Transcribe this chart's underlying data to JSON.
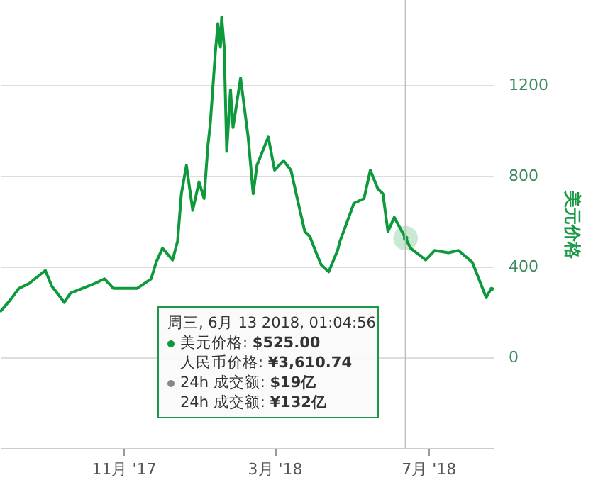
{
  "chart_data": {
    "type": "line",
    "ylabel": "美元价格",
    "x": [
      "2017-07-26",
      "2017-08-03",
      "2017-08-10",
      "2017-08-18",
      "2017-08-31",
      "2017-09-05",
      "2017-09-15",
      "2017-09-20",
      "2017-10-09",
      "2017-10-17",
      "2017-10-24",
      "2017-11-12",
      "2017-11-23",
      "2017-11-27",
      "2017-12-02",
      "2017-12-10",
      "2017-12-14",
      "2017-12-17",
      "2017-12-21",
      "2017-12-26",
      "2017-12-31",
      "2018-01-04",
      "2018-01-07",
      "2018-01-09",
      "2018-01-13",
      "2018-01-15",
      "2018-01-17",
      "2018-01-18",
      "2018-01-20",
      "2018-01-22",
      "2018-01-25",
      "2018-01-27",
      "2018-02-02",
      "2018-02-08",
      "2018-02-12",
      "2018-02-15",
      "2018-02-24",
      "2018-03-01",
      "2018-03-08",
      "2018-03-14",
      "2018-03-19",
      "2018-03-25",
      "2018-03-29",
      "2018-04-03",
      "2018-04-07",
      "2018-04-13",
      "2018-04-20",
      "2018-04-22",
      "2018-05-03",
      "2018-05-11",
      "2018-05-16",
      "2018-05-22",
      "2018-05-26",
      "2018-05-30",
      "2018-06-04",
      "2018-06-13",
      "2018-06-17",
      "2018-06-29",
      "2018-07-06",
      "2018-07-17",
      "2018-07-25",
      "2018-08-05",
      "2018-08-16",
      "2018-08-20",
      "2018-08-22"
    ],
    "series": [
      {
        "color": "#0e9a3c",
        "values": [
          200,
          252,
          304,
          325,
          383,
          315,
          242,
          283,
          325,
          346,
          304,
          304,
          346,
          419,
          481,
          429,
          512,
          721,
          846,
          648,
          773,
          700,
          929,
          1033,
          1346,
          1471,
          1367,
          1500,
          1367,
          908,
          1179,
          1013,
          1231,
          971,
          721,
          846,
          971,
          825,
          867,
          825,
          700,
          554,
          533,
          461,
          408,
          377,
          471,
          513,
          679,
          700,
          825,
          742,
          721,
          554,
          617,
          525,
          481,
          429,
          471,
          461,
          471,
          419,
          263,
          304,
          300
        ]
      },
      {
        "type": "scatter",
        "color": "#0e9a3c",
        "x": [
          "2018-06-13"
        ],
        "values": [
          525
        ]
      }
    ],
    "xlim": [
      "2017-07-26",
      "2018-08-22"
    ],
    "xticks": [
      {
        "value": "2017-11-01",
        "label": "11月 '17"
      },
      {
        "value": "2018-03-01",
        "label": "3月 '18"
      },
      {
        "value": "2018-07-01",
        "label": "7月 '18"
      }
    ],
    "ylim": [
      -400,
      1575
    ],
    "yticks": [
      0,
      400,
      800,
      1200
    ],
    "grid": "y",
    "ref_lines": [
      {
        "axis": "x",
        "value": "2018-06-13",
        "color": "#bbbbbb"
      }
    ],
    "annotations": [
      "周三, 6月 13 2018, 01:04:56",
      "美元价格: $525.00",
      "人民币价格: ¥3,610.74",
      "24h 成交额: $19亿",
      "24h 成交额: ¥132亿"
    ]
  }
}
